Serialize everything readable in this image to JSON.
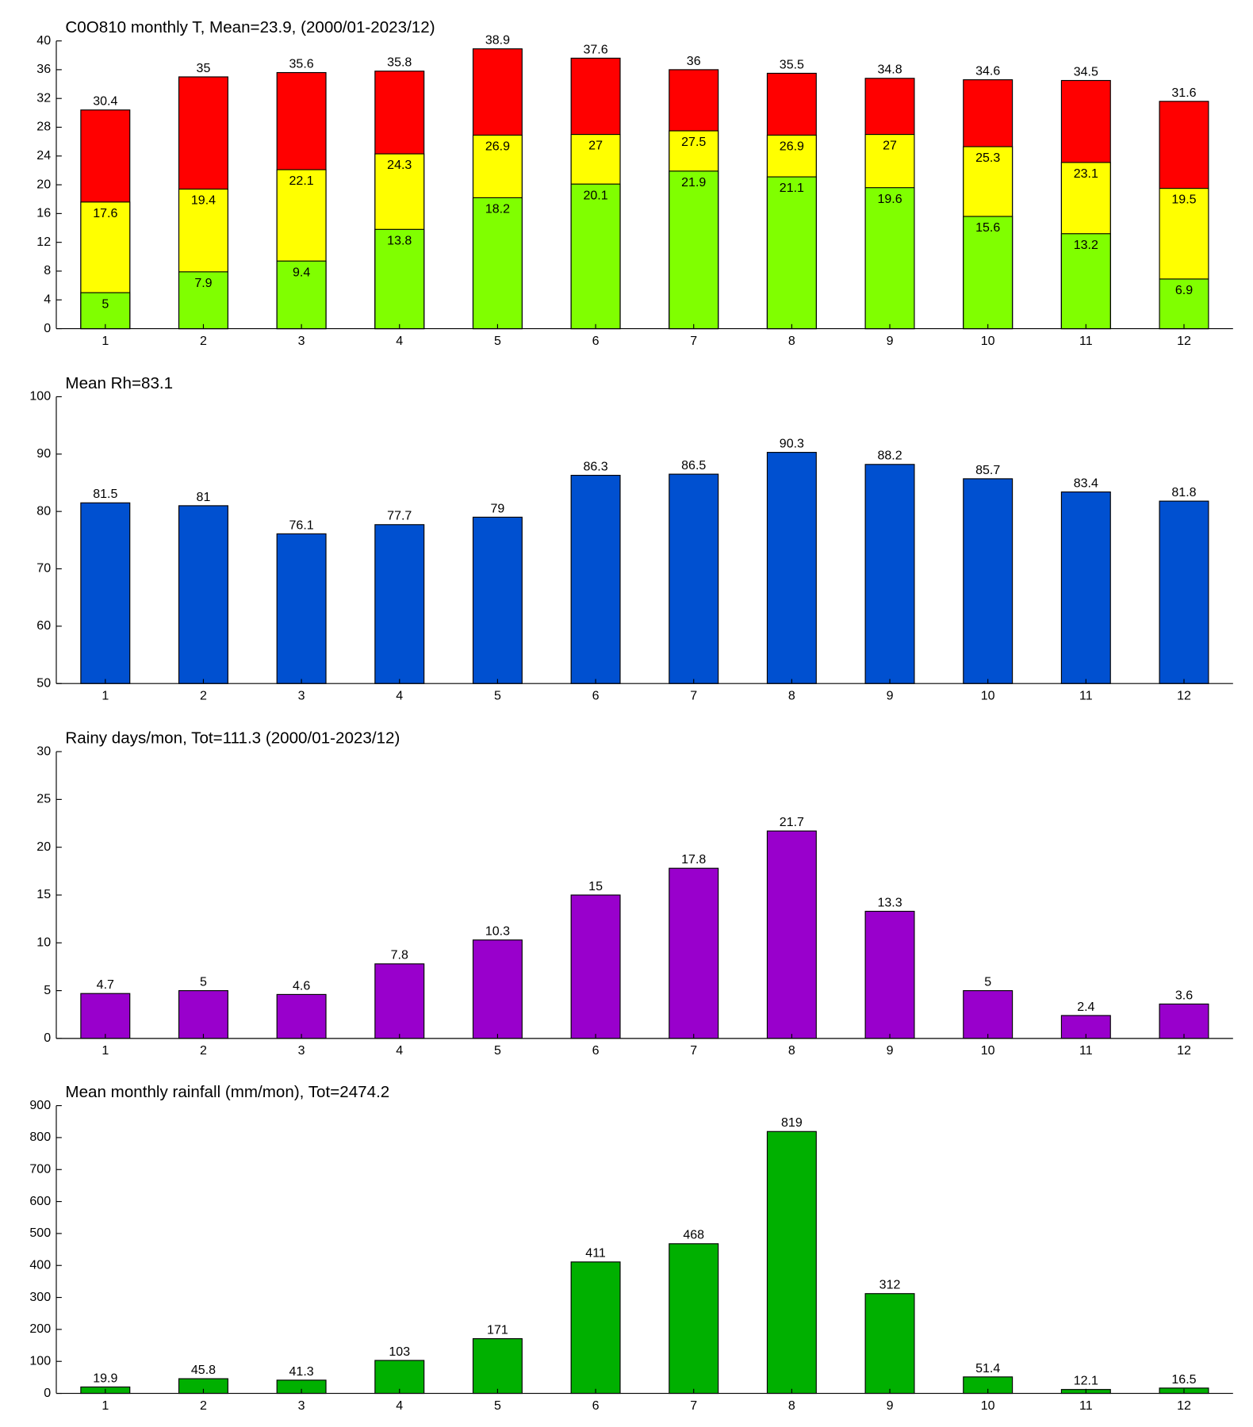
{
  "chart_data": [
    {
      "type": "bar",
      "title": "C0O810 monthly T, Mean=23.9, (2000/01-2023/12)",
      "categories": [
        1,
        2,
        3,
        4,
        5,
        6,
        7,
        8,
        9,
        10,
        11,
        12
      ],
      "series": [
        {
          "color": "#ff0000",
          "values": [
            30.4,
            35,
            35.6,
            35.8,
            38.9,
            37.6,
            36,
            35.5,
            34.8,
            34.6,
            34.5,
            31.6
          ]
        },
        {
          "color": "#ffff00",
          "values": [
            17.6,
            19.4,
            22.1,
            24.3,
            26.9,
            27,
            27.5,
            26.9,
            27,
            25.3,
            23.1,
            19.5
          ]
        },
        {
          "color": "#80ff00",
          "values": [
            5,
            7.9,
            9.4,
            13.8,
            18.2,
            20.1,
            21.9,
            21.1,
            19.6,
            15.6,
            13.2,
            6.9
          ]
        }
      ],
      "ylim": [
        0,
        40
      ],
      "yticks": [
        0,
        4,
        8,
        12,
        16,
        20,
        24,
        28,
        32,
        36,
        40
      ]
    },
    {
      "type": "bar",
      "title": "Mean Rh=83.1",
      "categories": [
        1,
        2,
        3,
        4,
        5,
        6,
        7,
        8,
        9,
        10,
        11,
        12
      ],
      "values": [
        81.5,
        81,
        76.1,
        77.7,
        79,
        86.3,
        86.5,
        90.3,
        88.2,
        85.7,
        83.4,
        81.8
      ],
      "color": "#0050d0",
      "ylim": [
        50,
        100
      ],
      "yticks": [
        50,
        60,
        70,
        80,
        90,
        100
      ]
    },
    {
      "type": "bar",
      "title": "Rainy days/mon, Tot=111.3 (2000/01-2023/12)",
      "categories": [
        1,
        2,
        3,
        4,
        5,
        6,
        7,
        8,
        9,
        10,
        11,
        12
      ],
      "values": [
        4.7,
        5,
        4.6,
        7.8,
        10.3,
        15,
        17.8,
        21.7,
        13.3,
        5,
        2.4,
        3.6
      ],
      "color": "#9900cc",
      "ylim": [
        0,
        30
      ],
      "yticks": [
        0,
        5,
        10,
        15,
        20,
        25,
        30
      ]
    },
    {
      "type": "bar",
      "title": "Mean monthly rainfall (mm/mon), Tot=2474.2",
      "categories": [
        1,
        2,
        3,
        4,
        5,
        6,
        7,
        8,
        9,
        10,
        11,
        12
      ],
      "values": [
        19.9,
        45.8,
        41.3,
        103,
        171,
        411,
        468,
        819,
        312,
        51.4,
        12.1,
        16.5
      ],
      "color": "#00b000",
      "ylim": [
        0,
        900
      ],
      "yticks": [
        0,
        100,
        200,
        300,
        400,
        500,
        600,
        700,
        800,
        900
      ]
    }
  ]
}
